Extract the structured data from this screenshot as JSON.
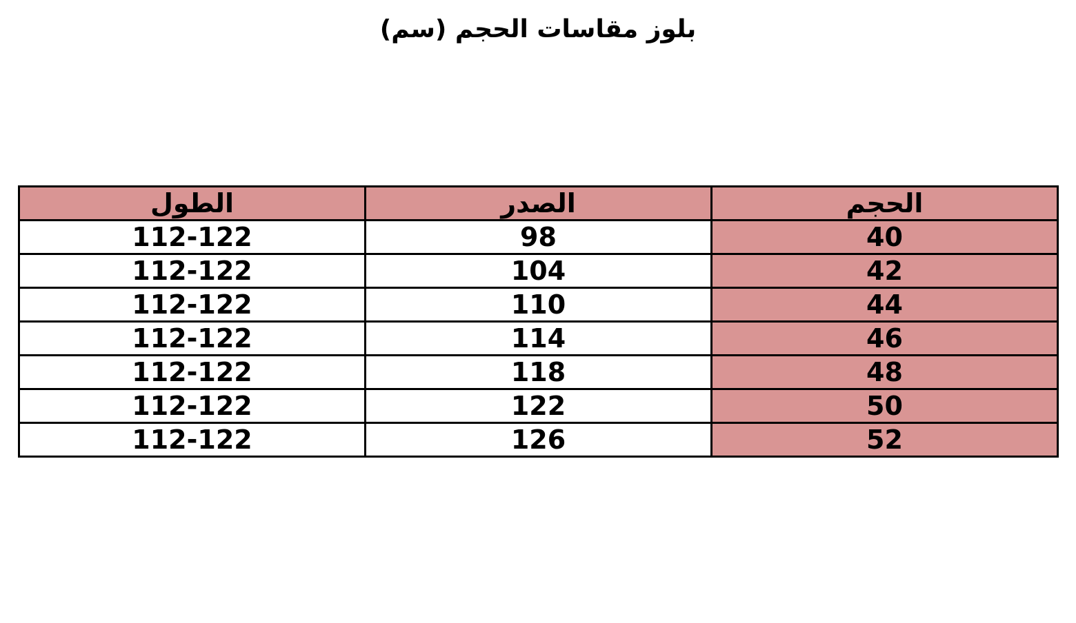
{
  "title": "بلوز مقاسات الحجم (سم)",
  "colors": {
    "highlight": "#d99594",
    "border": "#000000"
  },
  "table": {
    "headers": [
      "الحجم",
      "الصدر",
      "الطول"
    ],
    "rows": [
      [
        "40",
        "98",
        "112-122"
      ],
      [
        "42",
        "104",
        "112-122"
      ],
      [
        "44",
        "110",
        "112-122"
      ],
      [
        "46",
        "114",
        "112-122"
      ],
      [
        "48",
        "118",
        "112-122"
      ],
      [
        "50",
        "122",
        "112-122"
      ],
      [
        "52",
        "126",
        "112-122"
      ]
    ]
  }
}
